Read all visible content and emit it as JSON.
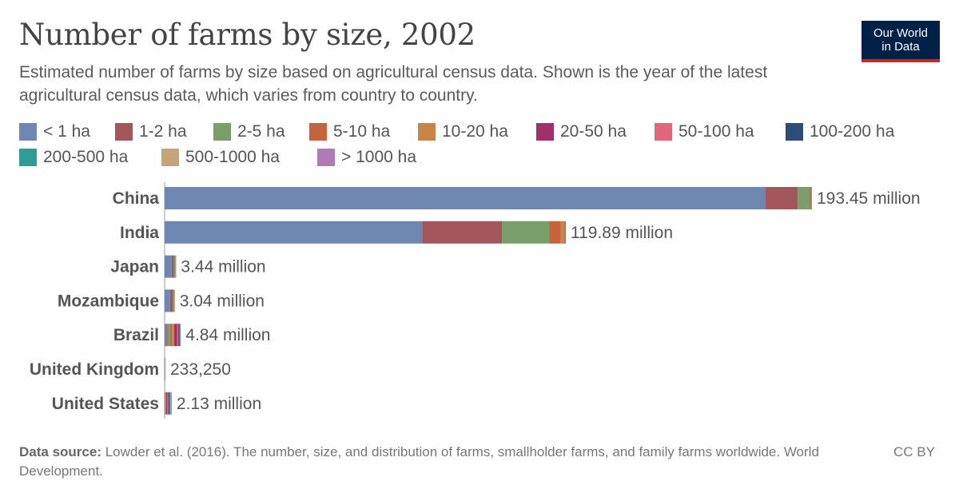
{
  "title": "Number of farms by size, 2002",
  "subtitle": "Estimated number of farms by size based on agricultural census data. Shown is the year of the latest agricultural census data, which varies from country to country.",
  "logo": {
    "line1": "Our World",
    "line2": "in Data"
  },
  "footer": {
    "source_label": "Data source:",
    "source_text": "Lowder et al. (2016). The number, size, and distribution of farms, smallholder farms, and family farms worldwide. World Development.",
    "license": "CC BY"
  },
  "legend": [
    {
      "label": "< 1 ha",
      "color": "#6d87b0"
    },
    {
      "label": "1-2 ha",
      "color": "#a2575d"
    },
    {
      "label": "2-5 ha",
      "color": "#7a9e6a"
    },
    {
      "label": "5-10 ha",
      "color": "#c6623c"
    },
    {
      "label": "10-20 ha",
      "color": "#c98545"
    },
    {
      "label": "20-50 ha",
      "color": "#a12f6a"
    },
    {
      "label": "50-100 ha",
      "color": "#e2667a"
    },
    {
      "label": "100-200 ha",
      "color": "#2e4c75"
    },
    {
      "label": "200-500 ha",
      "color": "#2f9d94"
    },
    {
      "label": "500-1000 ha",
      "color": "#c6a47b"
    },
    {
      "label": "> 1000 ha",
      "color": "#b07ab6"
    }
  ],
  "chart_data": {
    "type": "bar",
    "orientation": "horizontal",
    "stacked": true,
    "unit": "farms",
    "categories": [
      "China",
      "India",
      "Japan",
      "Mozambique",
      "Brazil",
      "United Kingdom",
      "United States"
    ],
    "total_labels": [
      "193.45 million",
      "119.89 million",
      "3.44 million",
      "3.04 million",
      "4.84 million",
      "233,250",
      "2.13 million"
    ],
    "totals": [
      193450000,
      119890000,
      3440000,
      3040000,
      4840000,
      233250,
      2130000
    ],
    "series": [
      {
        "name": "< 1 ha",
        "values": [
          179600000,
          77000000,
          2100000,
          1620000,
          520000,
          6000,
          10000
        ]
      },
      {
        "name": "1-2 ha",
        "values": [
          9600000,
          23800000,
          730000,
          760000,
          390000,
          8000,
          20000
        ]
      },
      {
        "name": "2-5 ha",
        "values": [
          3500000,
          14100000,
          360000,
          520000,
          730000,
          22000,
          80000
        ]
      },
      {
        "name": "5-10 ha",
        "values": [
          490000,
          3500000,
          130000,
          110000,
          580000,
          26000,
          110000
        ]
      },
      {
        "name": "10-20 ha",
        "values": [
          160000,
          1190000,
          70000,
          20000,
          660000,
          31000,
          210000
        ]
      },
      {
        "name": "20-50 ha",
        "values": [
          60000,
          250000,
          30000,
          6000,
          830000,
          46000,
          380000
        ]
      },
      {
        "name": "50-100 ha",
        "values": [
          25000,
          35000,
          10000,
          2000,
          380000,
          37000,
          310000
        ]
      },
      {
        "name": "100-200 ha",
        "values": [
          10000,
          10000,
          5000,
          1000,
          340000,
          30000,
          340000
        ]
      },
      {
        "name": "200-500 ha",
        "values": [
          4000,
          4000,
          3000,
          500,
          230000,
          18000,
          300000
        ]
      },
      {
        "name": "500-1000 ha",
        "values": [
          1000,
          1000,
          1000,
          300,
          110000,
          6000,
          150000
        ]
      },
      {
        "name": "> 1000 ha",
        "values": [
          1000,
          1000,
          1000,
          200,
          70000,
          3250,
          220000
        ]
      }
    ],
    "xlim": [
      0,
      200000000
    ],
    "grid": false,
    "legend_position": "top"
  }
}
